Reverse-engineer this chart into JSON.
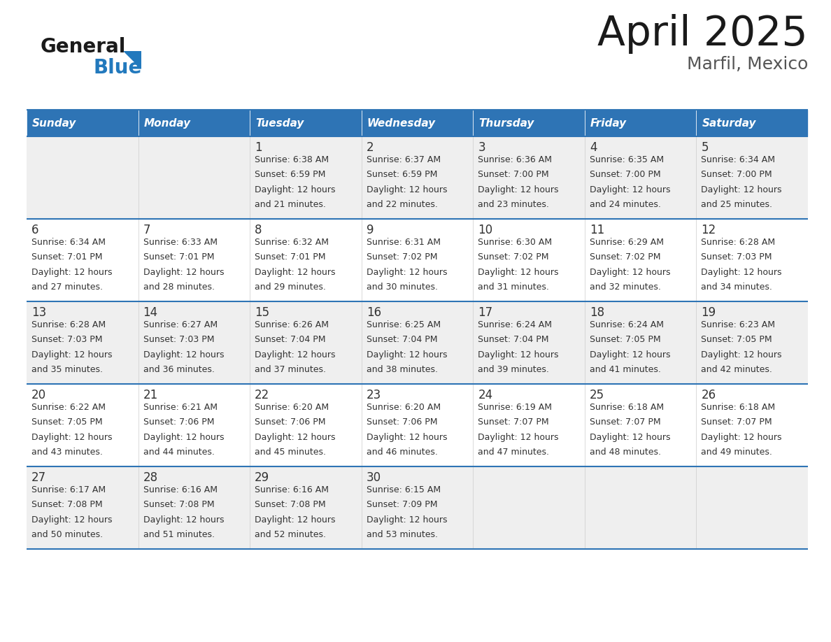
{
  "title": "April 2025",
  "subtitle": "Marfil, Mexico",
  "header_bg_color": "#2E74B5",
  "header_text_color": "#FFFFFF",
  "row_bg_odd": "#EFEFEF",
  "row_bg_even": "#FFFFFF",
  "cell_text_color": "#333333",
  "border_color": "#2E74B5",
  "days_of_week": [
    "Sunday",
    "Monday",
    "Tuesday",
    "Wednesday",
    "Thursday",
    "Friday",
    "Saturday"
  ],
  "calendar_data": [
    [
      {
        "day": "",
        "sunrise": "",
        "sunset": "",
        "daylight_hours": 0,
        "daylight_minutes": 0
      },
      {
        "day": "",
        "sunrise": "",
        "sunset": "",
        "daylight_hours": 0,
        "daylight_minutes": 0
      },
      {
        "day": "1",
        "sunrise": "6:38 AM",
        "sunset": "6:59 PM",
        "daylight_hours": 12,
        "daylight_minutes": 21
      },
      {
        "day": "2",
        "sunrise": "6:37 AM",
        "sunset": "6:59 PM",
        "daylight_hours": 12,
        "daylight_minutes": 22
      },
      {
        "day": "3",
        "sunrise": "6:36 AM",
        "sunset": "7:00 PM",
        "daylight_hours": 12,
        "daylight_minutes": 23
      },
      {
        "day": "4",
        "sunrise": "6:35 AM",
        "sunset": "7:00 PM",
        "daylight_hours": 12,
        "daylight_minutes": 24
      },
      {
        "day": "5",
        "sunrise": "6:34 AM",
        "sunset": "7:00 PM",
        "daylight_hours": 12,
        "daylight_minutes": 25
      }
    ],
    [
      {
        "day": "6",
        "sunrise": "6:34 AM",
        "sunset": "7:01 PM",
        "daylight_hours": 12,
        "daylight_minutes": 27
      },
      {
        "day": "7",
        "sunrise": "6:33 AM",
        "sunset": "7:01 PM",
        "daylight_hours": 12,
        "daylight_minutes": 28
      },
      {
        "day": "8",
        "sunrise": "6:32 AM",
        "sunset": "7:01 PM",
        "daylight_hours": 12,
        "daylight_minutes": 29
      },
      {
        "day": "9",
        "sunrise": "6:31 AM",
        "sunset": "7:02 PM",
        "daylight_hours": 12,
        "daylight_minutes": 30
      },
      {
        "day": "10",
        "sunrise": "6:30 AM",
        "sunset": "7:02 PM",
        "daylight_hours": 12,
        "daylight_minutes": 31
      },
      {
        "day": "11",
        "sunrise": "6:29 AM",
        "sunset": "7:02 PM",
        "daylight_hours": 12,
        "daylight_minutes": 32
      },
      {
        "day": "12",
        "sunrise": "6:28 AM",
        "sunset": "7:03 PM",
        "daylight_hours": 12,
        "daylight_minutes": 34
      }
    ],
    [
      {
        "day": "13",
        "sunrise": "6:28 AM",
        "sunset": "7:03 PM",
        "daylight_hours": 12,
        "daylight_minutes": 35
      },
      {
        "day": "14",
        "sunrise": "6:27 AM",
        "sunset": "7:03 PM",
        "daylight_hours": 12,
        "daylight_minutes": 36
      },
      {
        "day": "15",
        "sunrise": "6:26 AM",
        "sunset": "7:04 PM",
        "daylight_hours": 12,
        "daylight_minutes": 37
      },
      {
        "day": "16",
        "sunrise": "6:25 AM",
        "sunset": "7:04 PM",
        "daylight_hours": 12,
        "daylight_minutes": 38
      },
      {
        "day": "17",
        "sunrise": "6:24 AM",
        "sunset": "7:04 PM",
        "daylight_hours": 12,
        "daylight_minutes": 39
      },
      {
        "day": "18",
        "sunrise": "6:24 AM",
        "sunset": "7:05 PM",
        "daylight_hours": 12,
        "daylight_minutes": 41
      },
      {
        "day": "19",
        "sunrise": "6:23 AM",
        "sunset": "7:05 PM",
        "daylight_hours": 12,
        "daylight_minutes": 42
      }
    ],
    [
      {
        "day": "20",
        "sunrise": "6:22 AM",
        "sunset": "7:05 PM",
        "daylight_hours": 12,
        "daylight_minutes": 43
      },
      {
        "day": "21",
        "sunrise": "6:21 AM",
        "sunset": "7:06 PM",
        "daylight_hours": 12,
        "daylight_minutes": 44
      },
      {
        "day": "22",
        "sunrise": "6:20 AM",
        "sunset": "7:06 PM",
        "daylight_hours": 12,
        "daylight_minutes": 45
      },
      {
        "day": "23",
        "sunrise": "6:20 AM",
        "sunset": "7:06 PM",
        "daylight_hours": 12,
        "daylight_minutes": 46
      },
      {
        "day": "24",
        "sunrise": "6:19 AM",
        "sunset": "7:07 PM",
        "daylight_hours": 12,
        "daylight_minutes": 47
      },
      {
        "day": "25",
        "sunrise": "6:18 AM",
        "sunset": "7:07 PM",
        "daylight_hours": 12,
        "daylight_minutes": 48
      },
      {
        "day": "26",
        "sunrise": "6:18 AM",
        "sunset": "7:07 PM",
        "daylight_hours": 12,
        "daylight_minutes": 49
      }
    ],
    [
      {
        "day": "27",
        "sunrise": "6:17 AM",
        "sunset": "7:08 PM",
        "daylight_hours": 12,
        "daylight_minutes": 50
      },
      {
        "day": "28",
        "sunrise": "6:16 AM",
        "sunset": "7:08 PM",
        "daylight_hours": 12,
        "daylight_minutes": 51
      },
      {
        "day": "29",
        "sunrise": "6:16 AM",
        "sunset": "7:08 PM",
        "daylight_hours": 12,
        "daylight_minutes": 52
      },
      {
        "day": "30",
        "sunrise": "6:15 AM",
        "sunset": "7:09 PM",
        "daylight_hours": 12,
        "daylight_minutes": 53
      },
      {
        "day": "",
        "sunrise": "",
        "sunset": "",
        "daylight_hours": 0,
        "daylight_minutes": 0
      },
      {
        "day": "",
        "sunrise": "",
        "sunset": "",
        "daylight_hours": 0,
        "daylight_minutes": 0
      },
      {
        "day": "",
        "sunrise": "",
        "sunset": "",
        "daylight_hours": 0,
        "daylight_minutes": 0
      }
    ]
  ],
  "logo_text_general": "General",
  "logo_text_blue": "Blue",
  "logo_color_general": "#1a1a1a",
  "logo_color_blue": "#2279BD",
  "logo_triangle_color": "#2279BD",
  "title_color": "#1a1a1a",
  "subtitle_color": "#555555"
}
